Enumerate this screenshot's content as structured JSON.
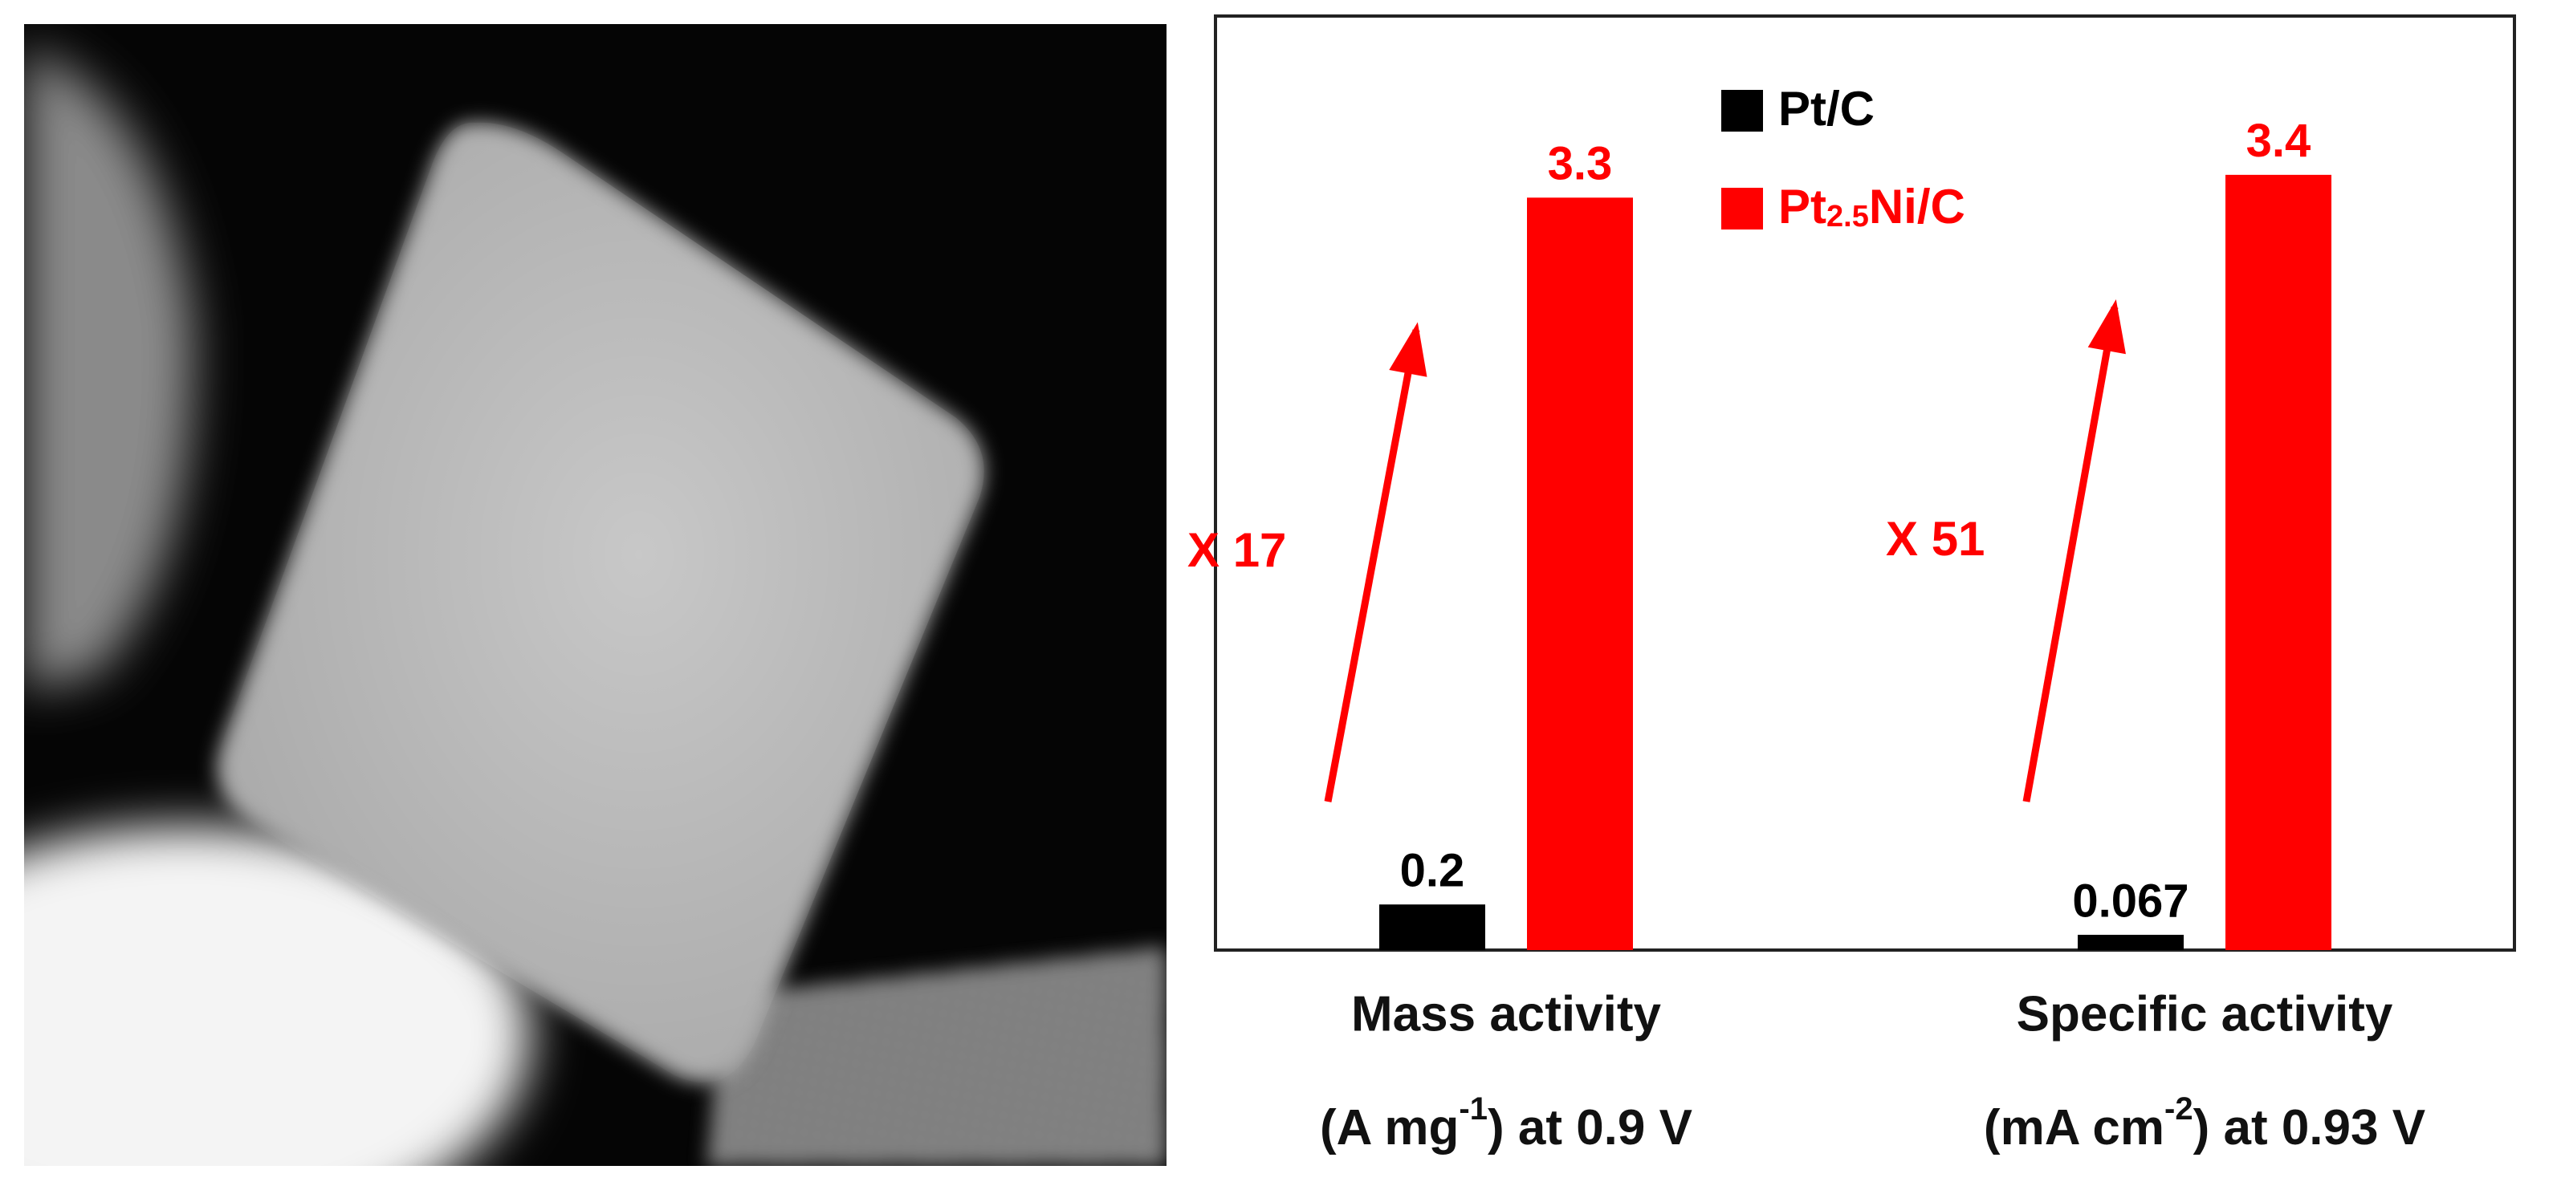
{
  "chart_data": {
    "type": "bar",
    "categories": [
      "Mass activity",
      "Specific activity"
    ],
    "category_units": [
      "(A mg-1) at 0.9 V",
      "(mA cm-2) at 0.93 V"
    ],
    "series": [
      {
        "name": "Pt/C",
        "color": "#000000",
        "values": [
          0.2,
          0.067
        ]
      },
      {
        "name": "Pt2.5Ni/C",
        "color": "#ff0000",
        "values": [
          3.3,
          3.4
        ]
      }
    ],
    "annotations": [
      "X 17",
      "X 51"
    ],
    "annotation_color": "#ff0000"
  }
}
